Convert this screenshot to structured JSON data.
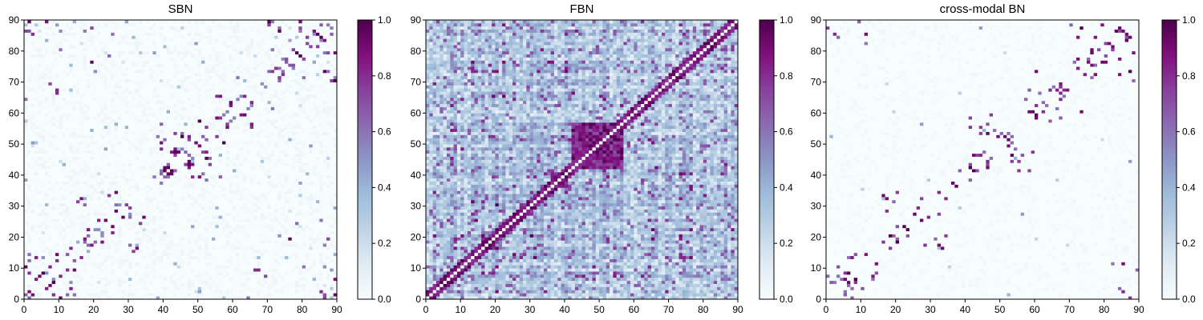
{
  "chart_data": [
    {
      "type": "heatmap",
      "title": "SBN",
      "xlim": [
        0,
        90
      ],
      "ylim": [
        0,
        90
      ],
      "xticks": [
        0,
        10,
        20,
        30,
        40,
        50,
        60,
        70,
        80,
        90
      ],
      "yticks": [
        0,
        10,
        20,
        30,
        40,
        50,
        60,
        70,
        80,
        90
      ],
      "colorbar": {
        "range": [
          0.0,
          1.0
        ],
        "ticks": [
          "0.0",
          "0.2",
          "0.4",
          "0.6",
          "0.8",
          "1.0"
        ]
      },
      "colormap": "BuPu",
      "grid": false,
      "description_of_values": "sparse symmetric matrix; mostly near 0 with scattered strong (~1.0) connections near diagonal and in off-diagonal clusters"
    },
    {
      "type": "heatmap",
      "title": "FBN",
      "xlim": [
        0,
        90
      ],
      "ylim": [
        0,
        90
      ],
      "xticks": [
        0,
        10,
        20,
        30,
        40,
        50,
        60,
        70,
        80,
        90
      ],
      "yticks": [
        0,
        10,
        20,
        30,
        40,
        50,
        60,
        70,
        80,
        90
      ],
      "colorbar": {
        "range": [
          0.0,
          1.0
        ],
        "ticks": [
          "0.0",
          "0.2",
          "0.4",
          "0.6",
          "0.8",
          "1.0"
        ]
      },
      "colormap": "BuPu",
      "grid": false,
      "description_of_values": "dense symmetric matrix with moderate values everywhere, a strong block around nodes 42-56, diagonal set to 0"
    },
    {
      "type": "heatmap",
      "title": "cross-modal BN",
      "xlim": [
        0,
        90
      ],
      "ylim": [
        0,
        90
      ],
      "xticks": [
        0,
        10,
        20,
        30,
        40,
        50,
        60,
        70,
        80,
        90
      ],
      "yticks": [
        0,
        10,
        20,
        30,
        40,
        50,
        60,
        70,
        80,
        90
      ],
      "colorbar": {
        "range": [
          0.0,
          1.0
        ],
        "ticks": [
          "0.0",
          "0.2",
          "0.4",
          "0.6",
          "0.8",
          "1.0"
        ]
      },
      "colormap": "BuPu",
      "grid": false,
      "description_of_values": "very sparse symmetric matrix; near 0 with scattered strong connections resembling SBN"
    }
  ]
}
